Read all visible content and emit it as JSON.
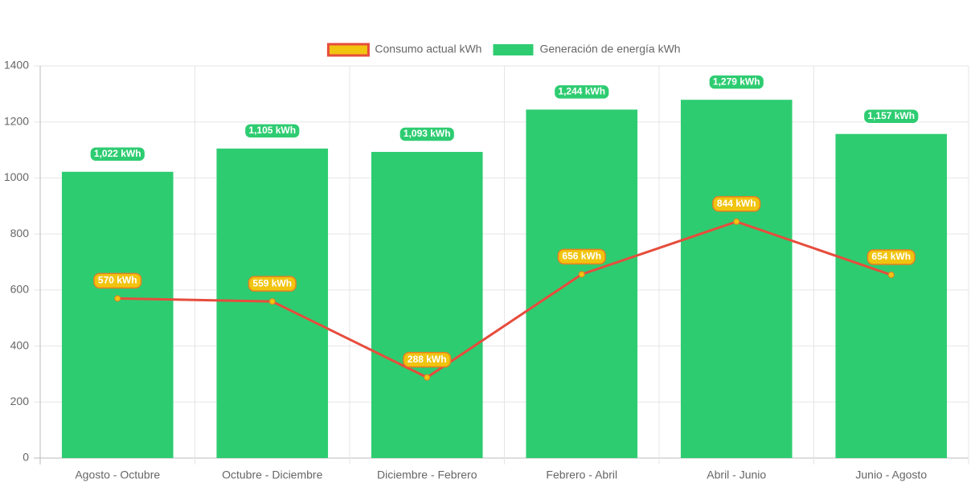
{
  "chart_data": {
    "type": "bar",
    "categories": [
      "Agosto - Octubre",
      "Octubre - Diciembre",
      "Diciembre - Febrero",
      "Febrero - Abril",
      "Abril - Junio",
      "Junio - Agosto"
    ],
    "series": [
      {
        "name": "Consumo actual kWh",
        "type": "line",
        "color": "#e74c3c",
        "point_color": "#f1c40f",
        "values": [
          570,
          559,
          288,
          656,
          844,
          654
        ],
        "value_labels": [
          "570 kWh",
          "559 kWh",
          "288 kWh",
          "656 kWh",
          "844 kWh",
          "654 kWh"
        ]
      },
      {
        "name": "Generación de energía kWh",
        "type": "bar",
        "color": "#2ecc71",
        "values": [
          1022,
          1105,
          1093,
          1244,
          1279,
          1157
        ],
        "value_labels": [
          "1,022 kWh",
          "1,105 kWh",
          "1,093 kWh",
          "1,244 kWh",
          "1,279 kWh",
          "1,157 kWh"
        ]
      }
    ],
    "ylim": [
      0,
      1400
    ],
    "yticks": [
      0,
      200,
      400,
      600,
      800,
      1000,
      1200,
      1400
    ],
    "grid": true,
    "legend": "top"
  }
}
